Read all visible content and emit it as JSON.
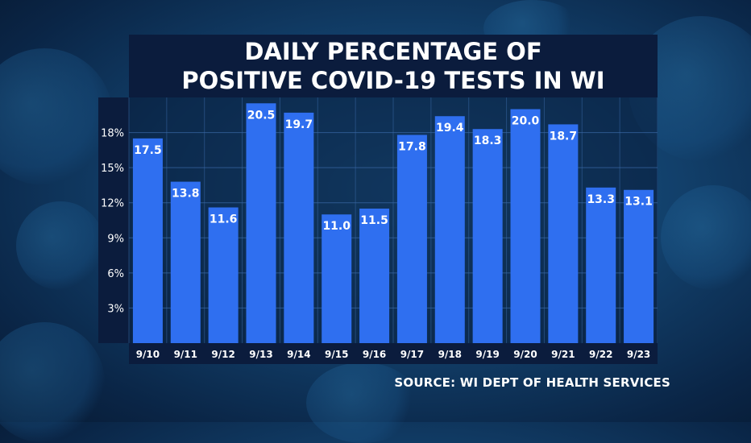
{
  "title_lines": [
    "DAILY PERCENTAGE OF",
    "POSITIVE COVID-19 TESTS IN WI"
  ],
  "source": "SOURCE: WI DEPT OF HEALTH SERVICES",
  "colors": {
    "bar": "#2f6ff0",
    "panel": "#0b1c3d",
    "grid": "#3b6aa8",
    "text": "#ffffff"
  },
  "chart_data": {
    "type": "bar",
    "title": "DAILY PERCENTAGE OF POSITIVE COVID-19 TESTS IN WI",
    "categories": [
      "9/10",
      "9/11",
      "9/12",
      "9/13",
      "9/14",
      "9/15",
      "9/16",
      "9/17",
      "9/18",
      "9/19",
      "9/20",
      "9/21",
      "9/22",
      "9/23"
    ],
    "values": [
      17.5,
      13.8,
      11.6,
      20.5,
      19.7,
      11.0,
      11.5,
      17.8,
      19.4,
      18.3,
      20.0,
      18.7,
      13.3,
      13.1
    ],
    "value_labels": [
      "17.5",
      "13.8",
      "11.6",
      "20.5",
      "19.7",
      "11.0",
      "11.5",
      "17.8",
      "19.4",
      "18.3",
      "20.0",
      "18.7",
      "13.3",
      "13.1"
    ],
    "yticks": [
      3,
      6,
      9,
      12,
      15,
      18
    ],
    "ytick_labels": [
      "3%",
      "6%",
      "9%",
      "12%",
      "15%",
      "18%"
    ],
    "ylim": [
      0,
      21
    ],
    "xlabel": "",
    "ylabel": "",
    "grid": true
  }
}
